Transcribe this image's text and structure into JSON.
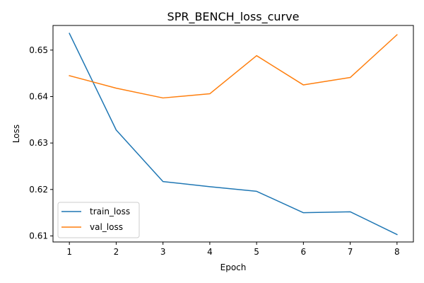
{
  "chart_data": {
    "type": "line",
    "title": "SPR_BENCH_loss_curve",
    "xlabel": "Epoch",
    "ylabel": "Loss",
    "x": [
      1,
      2,
      3,
      4,
      5,
      6,
      7,
      8
    ],
    "xticks": [
      1,
      2,
      3,
      4,
      5,
      6,
      7,
      8
    ],
    "yticks": [
      0.61,
      0.62,
      0.63,
      0.64,
      0.65
    ],
    "xlim": [
      0.65,
      8.35
    ],
    "ylim": [
      0.6087,
      0.6553
    ],
    "grid": false,
    "legend_position": "lower-left",
    "series": [
      {
        "name": "train_loss",
        "color": "#1f77b4",
        "values": [
          0.6536,
          0.6328,
          0.6217,
          0.6206,
          0.6196,
          0.615,
          0.6152,
          0.6103
        ]
      },
      {
        "name": "val_loss",
        "color": "#ff7f0e",
        "values": [
          0.6445,
          0.6418,
          0.6397,
          0.6406,
          0.6488,
          0.6425,
          0.6441,
          0.6533
        ]
      }
    ]
  }
}
